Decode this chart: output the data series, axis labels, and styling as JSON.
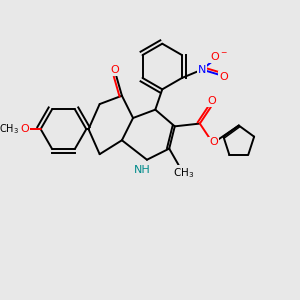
{
  "bg_color": "#e8e8e8",
  "bond_color": "#000000",
  "bond_width": 1.4,
  "atom_colors": {
    "O": "#ff0000",
    "N": "#0000ff",
    "H": "#008b8b",
    "C": "#000000"
  },
  "figsize": [
    3.0,
    3.0
  ],
  "dpi": 100,
  "xlim": [
    0,
    10
  ],
  "ylim": [
    0,
    10
  ]
}
